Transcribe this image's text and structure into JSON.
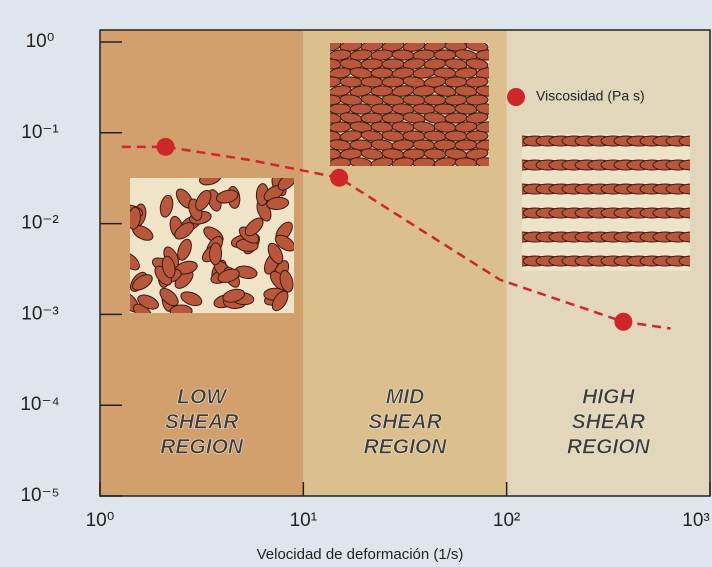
{
  "chart_data": {
    "type": "scatter",
    "x_label": "Velocidad de deformación (1/s)",
    "xscale": "log",
    "yscale": "log",
    "xlim": [
      1,
      1000
    ],
    "ylim": [
      1e-05,
      1
    ],
    "xticks": [
      {
        "value": 1,
        "label": "10⁰"
      },
      {
        "value": 10,
        "label": "10¹"
      },
      {
        "value": 100,
        "label": "10²"
      },
      {
        "value": 1000,
        "label": "10³"
      }
    ],
    "yticks": [
      {
        "value": 1,
        "label": "10⁰"
      },
      {
        "value": 0.1,
        "label": "10⁻¹"
      },
      {
        "value": 0.01,
        "label": "10⁻²"
      },
      {
        "value": 0.001,
        "label": "10⁻³"
      },
      {
        "value": 0.0001,
        "label": "10⁻⁴"
      },
      {
        "value": 1e-05,
        "label": "10⁻⁵"
      }
    ],
    "regions": [
      {
        "lines": [
          "LOW",
          "SHEAR",
          "REGION"
        ],
        "range": [
          1,
          10
        ],
        "color": "#d2a06c"
      },
      {
        "lines": [
          "MID",
          "SHEAR",
          "REGION"
        ],
        "range": [
          10,
          100
        ],
        "color": "#dbbf8d"
      },
      {
        "lines": [
          "HIGH",
          "SHEAR",
          "REGION"
        ],
        "range": [
          100,
          1000
        ],
        "color": "#e2d7ba"
      }
    ],
    "series": [
      {
        "name": "Viscosidad (Pa s)",
        "color": "#d0262a",
        "x": [
          2.1,
          15,
          375
        ],
        "values": [
          0.07,
          0.032,
          0.00083
        ]
      },
      {
        "color": "#d0262a",
        "dashed": true,
        "x": [
          1.28,
          2.1,
          5.5,
          15,
          38,
          93,
          375,
          640
        ],
        "values": [
          0.07,
          0.07,
          0.05,
          0.032,
          0.0085,
          0.0024,
          0.00083,
          0.0007
        ]
      }
    ]
  }
}
